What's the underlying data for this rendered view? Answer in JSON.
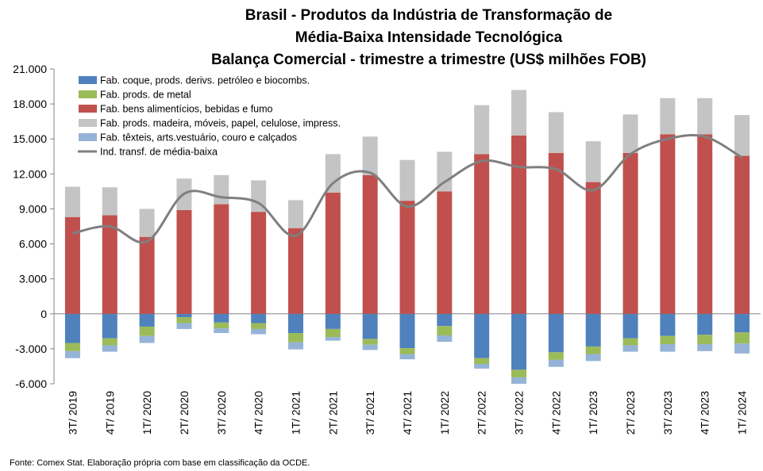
{
  "chart_data": {
    "type": "bar",
    "title_lines": [
      "Brasil - Produtos da Indústria de Transformação de",
      "Média-Baixa Intensidade Tecnológica",
      "Balança Comercial - trimestre a trimestre (US$ milhões FOB)"
    ],
    "source": "Fonte: Comex Stat. Elaboração própria com base em classificação da OCDE.",
    "categories": [
      "3T/ 2019",
      "4T/ 2019",
      "1T/ 2020",
      "2T/ 2020",
      "3T/ 2020",
      "4T/ 2020",
      "1T/ 2021",
      "2T/ 2021",
      "3T/ 2021",
      "4T/ 2021",
      "1T/ 2022",
      "2T/ 2022",
      "3T/ 2022",
      "4T/ 2022",
      "1T/ 2023",
      "2T/ 2023",
      "3T/ 2023",
      "4T/ 2023",
      "1T/ 2024"
    ],
    "ylim": [
      -6000,
      21000
    ],
    "yticks": [
      21000,
      18000,
      15000,
      12000,
      9000,
      6000,
      3000,
      0,
      -3000,
      -6000
    ],
    "ytick_labels": [
      "21.000",
      "18.000",
      "15.000",
      "12.000",
      "9.000",
      "6.000",
      "3.000",
      "0",
      "-3.000",
      "-6.000"
    ],
    "series": [
      {
        "name": "Fab. coque, prods. derivs. petróleo e biocombs.",
        "color": "#4F81BD",
        "values": [
          -2500,
          -2100,
          -1100,
          -300,
          -750,
          -800,
          -1650,
          -1300,
          -2150,
          -2950,
          -1050,
          -3800,
          -4800,
          -3300,
          -2800,
          -2100,
          -1900,
          -1800,
          -1600
        ]
      },
      {
        "name": "Fab. prods. de metal",
        "color": "#9BBB59",
        "values": [
          -700,
          -600,
          -800,
          -500,
          -500,
          -500,
          -800,
          -700,
          -500,
          -500,
          -800,
          -500,
          -650,
          -650,
          -650,
          -600,
          -700,
          -800,
          -950
        ]
      },
      {
        "name": "Fab. bens alimentícios, bebidas e fumo",
        "color": "#C0504D",
        "values": [
          8300,
          8450,
          6600,
          8900,
          9400,
          8750,
          7350,
          10400,
          11900,
          9700,
          10500,
          13700,
          15300,
          13800,
          11300,
          13800,
          15400,
          15400,
          13550
        ]
      },
      {
        "name": "Fab. prods. madeira, móveis, papel, celulose, impress.",
        "color": "#C4C4C4",
        "values": [
          2600,
          2400,
          2400,
          2700,
          2500,
          2700,
          2400,
          3300,
          3300,
          3500,
          3400,
          4200,
          3900,
          3500,
          3500,
          3300,
          3100,
          3100,
          3500
        ]
      },
      {
        "name": "Fab. têxteis, arts.vestuário, couro e calçados",
        "color": "#95B3D7",
        "values": [
          -600,
          -550,
          -600,
          -500,
          -400,
          -450,
          -600,
          -300,
          -450,
          -450,
          -550,
          -400,
          -550,
          -600,
          -600,
          -550,
          -650,
          -600,
          -850
        ]
      },
      {
        "name": "Ind. transf. de média-baixa",
        "color": "#7F7F7F",
        "kind": "line",
        "values": [
          6900,
          7500,
          6200,
          10300,
          10000,
          9500,
          6700,
          11200,
          12100,
          9200,
          11300,
          13100,
          12600,
          12400,
          10600,
          13700,
          15000,
          15200,
          13400
        ]
      }
    ]
  }
}
